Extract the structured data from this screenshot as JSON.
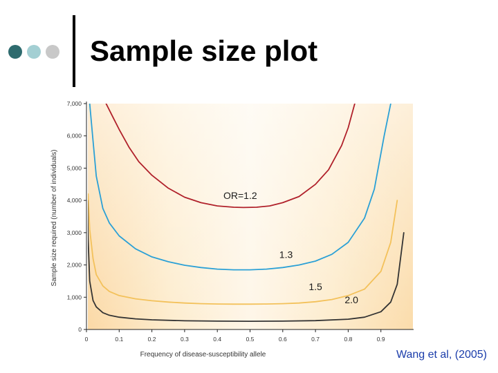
{
  "slide": {
    "title": "Sample size plot",
    "credit": "Wang et al, (2005)",
    "bullet_colors": [
      "#2e6b6e",
      "#a3cfd3",
      "#c8c8c8"
    ]
  },
  "chart_data": {
    "type": "line",
    "title": "",
    "xlabel": "Frequency of disease-susceptibility allele",
    "ylabel": "Sample size required (number of individuals)",
    "xlim": [
      0,
      1
    ],
    "ylim": [
      0,
      7000
    ],
    "x_ticks": [
      0,
      0.1,
      0.2,
      0.3,
      0.4,
      0.5,
      0.6,
      0.7,
      0.8,
      0.9
    ],
    "x_tick_labels": [
      "0",
      "0.1",
      "0.2",
      "0.3",
      "0.4",
      "0.5",
      "0.6",
      "0.7",
      "0.8",
      "0.9"
    ],
    "y_ticks": [
      0,
      1000,
      2000,
      3000,
      4000,
      5000,
      6000,
      7000
    ],
    "y_tick_labels": [
      "0",
      "1,000",
      "2,000",
      "3,000",
      "4,000",
      "5,000",
      "6,000",
      "7,000"
    ],
    "grid": false,
    "series": [
      {
        "name": "OR=1.2",
        "color": "#b0202a",
        "x": [
          0.06,
          0.08,
          0.1,
          0.13,
          0.16,
          0.2,
          0.25,
          0.3,
          0.35,
          0.4,
          0.45,
          0.48,
          0.52,
          0.56,
          0.6,
          0.65,
          0.7,
          0.74,
          0.78,
          0.8,
          0.82
        ],
        "y": [
          7000,
          6600,
          6200,
          5650,
          5200,
          4780,
          4380,
          4100,
          3930,
          3830,
          3790,
          3780,
          3790,
          3830,
          3930,
          4120,
          4500,
          4950,
          5700,
          6250,
          7000
        ]
      },
      {
        "name": "1.3",
        "color": "#2aa0d6",
        "x": [
          0.01,
          0.02,
          0.03,
          0.05,
          0.07,
          0.1,
          0.15,
          0.2,
          0.25,
          0.3,
          0.35,
          0.4,
          0.45,
          0.5,
          0.55,
          0.6,
          0.65,
          0.7,
          0.75,
          0.8,
          0.85,
          0.88,
          0.91,
          0.93
        ],
        "y": [
          7000,
          5850,
          4750,
          3750,
          3300,
          2900,
          2500,
          2250,
          2100,
          1990,
          1920,
          1870,
          1850,
          1850,
          1870,
          1920,
          2000,
          2120,
          2330,
          2700,
          3450,
          4350,
          6000,
          7000
        ]
      },
      {
        "name": "1.5",
        "color": "#f3c15a",
        "x": [
          0.005,
          0.01,
          0.02,
          0.03,
          0.05,
          0.07,
          0.1,
          0.15,
          0.2,
          0.25,
          0.3,
          0.35,
          0.4,
          0.45,
          0.5,
          0.55,
          0.6,
          0.65,
          0.7,
          0.75,
          0.8,
          0.85,
          0.9,
          0.93,
          0.95
        ],
        "y": [
          4200,
          3100,
          2200,
          1700,
          1350,
          1180,
          1050,
          950,
          890,
          850,
          820,
          800,
          790,
          785,
          785,
          790,
          800,
          820,
          860,
          930,
          1050,
          1250,
          1800,
          2700,
          4000
        ]
      },
      {
        "name": "2.0",
        "color": "#333333",
        "x": [
          0.003,
          0.005,
          0.01,
          0.02,
          0.03,
          0.05,
          0.07,
          0.1,
          0.15,
          0.2,
          0.3,
          0.4,
          0.5,
          0.6,
          0.7,
          0.8,
          0.85,
          0.9,
          0.93,
          0.95,
          0.97
        ],
        "y": [
          4000,
          2800,
          1500,
          900,
          700,
          520,
          440,
          380,
          330,
          300,
          270,
          260,
          255,
          260,
          275,
          320,
          380,
          550,
          850,
          1400,
          3000
        ]
      }
    ],
    "annotations": [
      {
        "text": "OR=1.2",
        "x": 0.47,
        "y": 4050
      },
      {
        "text": "1.3",
        "x": 0.61,
        "y": 2220
      },
      {
        "text": "1.5",
        "x": 0.7,
        "y": 1220
      },
      {
        "text": "2.0",
        "x": 0.81,
        "y": 810
      }
    ]
  }
}
